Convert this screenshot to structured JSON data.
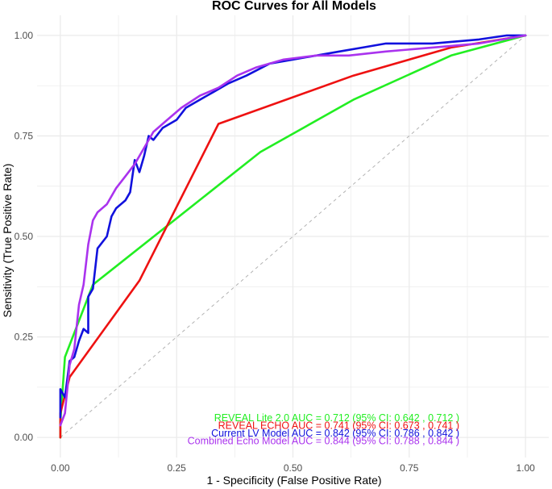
{
  "chart_data": {
    "type": "line",
    "title": "ROC Curves for All Models",
    "xlabel": "1 - Specificity (False Positive Rate)",
    "ylabel": "Sensitivity (True Positive Rate)",
    "xlim": [
      -0.05,
      1.05
    ],
    "ylim": [
      -0.05,
      1.05
    ],
    "x_ticks": [
      0.0,
      0.25,
      0.5,
      0.75,
      1.0
    ],
    "x_tick_labels": [
      "0.00",
      "0.25",
      "0.50",
      "0.75",
      "1.00"
    ],
    "y_ticks": [
      0.0,
      0.25,
      0.5,
      0.75,
      1.0
    ],
    "y_tick_labels": [
      "0.00",
      "0.25",
      "0.50",
      "0.75",
      "1.00"
    ],
    "grid": true,
    "background": "#ebebeb",
    "legend_placement": "bottom-right (inside plot)",
    "reference_line": {
      "from": [
        0,
        0
      ],
      "to": [
        1,
        1
      ],
      "color": "#b3b3b3",
      "style": "dashed"
    },
    "series": [
      {
        "color": "#22ee22",
        "annotation": [
          "REVEAL Lite 2.0 AUC = ",
          "0.712 ",
          " (95% CI: ",
          "0.642 ",
          ",  ",
          "0.712 ",
          " )"
        ],
        "points": [
          [
            0.0,
            0.0
          ],
          [
            0.0,
            0.04
          ],
          [
            0.01,
            0.2
          ],
          [
            0.07,
            0.38
          ],
          [
            0.43,
            0.71
          ],
          [
            0.63,
            0.84
          ],
          [
            0.84,
            0.95
          ],
          [
            1.0,
            1.0
          ]
        ]
      },
      {
        "color": "#ee1111",
        "annotation": [
          "REVEAL ECHO AUC = ",
          "0.741 ",
          " (95% CI: ",
          "0.673 ",
          ",  ",
          "0.741 ",
          " )"
        ],
        "points": [
          [
            0.0,
            0.0
          ],
          [
            0.0,
            0.06
          ],
          [
            0.02,
            0.15
          ],
          [
            0.17,
            0.39
          ],
          [
            0.34,
            0.78
          ],
          [
            0.63,
            0.9
          ],
          [
            0.84,
            0.97
          ],
          [
            1.0,
            1.0
          ]
        ]
      },
      {
        "color": "#1111dd",
        "annotation": [
          "Current LV Model AUC = ",
          "0.842 ",
          " (95% CI: ",
          "0.786 ",
          ",  ",
          "0.842 ",
          " )"
        ],
        "points": [
          [
            0.0,
            0.05
          ],
          [
            0.0,
            0.12
          ],
          [
            0.01,
            0.1
          ],
          [
            0.02,
            0.19
          ],
          [
            0.03,
            0.2
          ],
          [
            0.04,
            0.24
          ],
          [
            0.05,
            0.27
          ],
          [
            0.06,
            0.26
          ],
          [
            0.06,
            0.35
          ],
          [
            0.07,
            0.37
          ],
          [
            0.08,
            0.47
          ],
          [
            0.1,
            0.5
          ],
          [
            0.11,
            0.55
          ],
          [
            0.12,
            0.57
          ],
          [
            0.14,
            0.59
          ],
          [
            0.15,
            0.61
          ],
          [
            0.16,
            0.69
          ],
          [
            0.17,
            0.66
          ],
          [
            0.18,
            0.7
          ],
          [
            0.19,
            0.75
          ],
          [
            0.2,
            0.74
          ],
          [
            0.22,
            0.77
          ],
          [
            0.25,
            0.79
          ],
          [
            0.27,
            0.82
          ],
          [
            0.3,
            0.84
          ],
          [
            0.33,
            0.86
          ],
          [
            0.36,
            0.88
          ],
          [
            0.4,
            0.9
          ],
          [
            0.45,
            0.93
          ],
          [
            0.5,
            0.94
          ],
          [
            0.55,
            0.95
          ],
          [
            0.6,
            0.96
          ],
          [
            0.65,
            0.97
          ],
          [
            0.7,
            0.98
          ],
          [
            0.75,
            0.98
          ],
          [
            0.8,
            0.98
          ],
          [
            0.9,
            0.99
          ],
          [
            0.96,
            1.0
          ],
          [
            1.0,
            1.0
          ]
        ]
      },
      {
        "color": "#aa33ee",
        "annotation": [
          "Combined Echo Model AUC = ",
          "0.844 ",
          " (95% CI: ",
          "0.788 ",
          ",  ",
          "0.844 ",
          " )"
        ],
        "points": [
          [
            0.0,
            0.03
          ],
          [
            0.01,
            0.06
          ],
          [
            0.02,
            0.18
          ],
          [
            0.03,
            0.22
          ],
          [
            0.04,
            0.33
          ],
          [
            0.05,
            0.38
          ],
          [
            0.06,
            0.48
          ],
          [
            0.07,
            0.54
          ],
          [
            0.08,
            0.56
          ],
          [
            0.1,
            0.58
          ],
          [
            0.12,
            0.62
          ],
          [
            0.14,
            0.65
          ],
          [
            0.16,
            0.68
          ],
          [
            0.18,
            0.72
          ],
          [
            0.2,
            0.76
          ],
          [
            0.23,
            0.79
          ],
          [
            0.26,
            0.82
          ],
          [
            0.3,
            0.85
          ],
          [
            0.34,
            0.87
          ],
          [
            0.38,
            0.9
          ],
          [
            0.42,
            0.92
          ],
          [
            0.48,
            0.94
          ],
          [
            0.55,
            0.95
          ],
          [
            0.62,
            0.95
          ],
          [
            0.7,
            0.96
          ],
          [
            0.8,
            0.97
          ],
          [
            0.9,
            0.98
          ],
          [
            0.95,
            0.99
          ],
          [
            1.0,
            1.0
          ]
        ]
      }
    ]
  }
}
